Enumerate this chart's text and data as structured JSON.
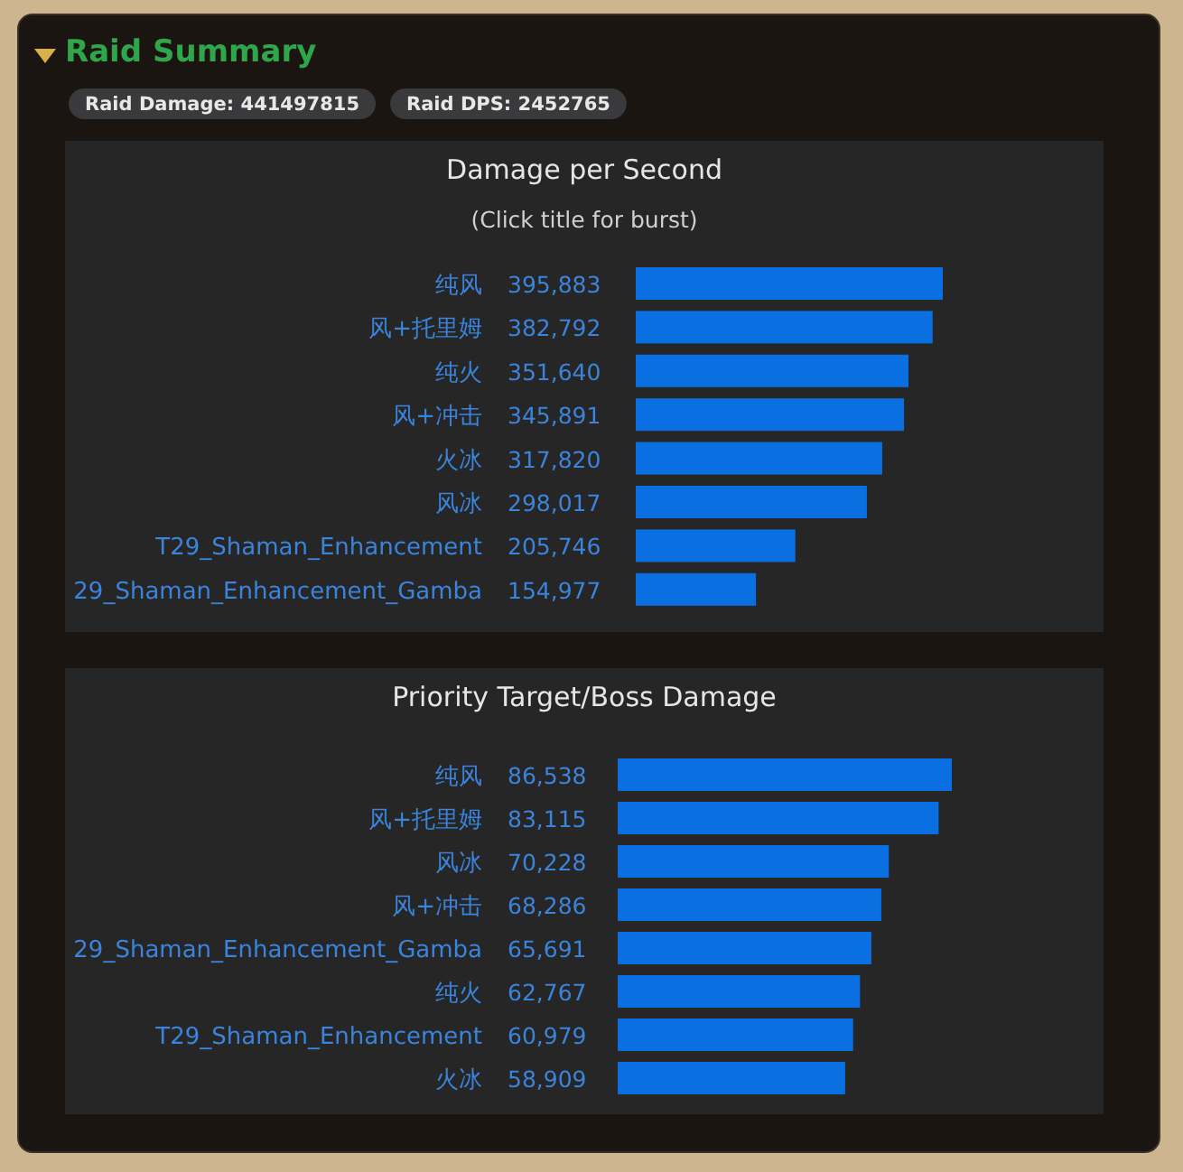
{
  "chart_data": [
    {
      "type": "other",
      "title": "Raid Summary",
      "annotations": [
        "Raid Damage: 441497815",
        "Raid DPS: 2452765"
      ]
    },
    {
      "type": "bar",
      "orientation": "horizontal",
      "title": "Damage per Second",
      "subtitle": "(Click title for burst)",
      "color": "#0a6fe0",
      "categories": [
        "纯风",
        "风+托里姆",
        "纯火",
        "风+冲击",
        "火冰",
        "风冰",
        "T29_Shaman_Enhancement",
        "29_Shaman_Enhancement_Gamba"
      ],
      "values": [
        395883,
        382792,
        351640,
        345891,
        317820,
        298017,
        205746,
        154977
      ],
      "value_labels": [
        "395,883",
        "382,792",
        "351,640",
        "345,891",
        "317,820",
        "298,017",
        "205,746",
        "154,977"
      ]
    },
    {
      "type": "bar",
      "orientation": "horizontal",
      "title": "Priority Target/Boss Damage",
      "color": "#0a6fe0",
      "categories": [
        "纯风",
        "风+托里姆",
        "风冰",
        "风+冲击",
        "29_Shaman_Enhancement_Gamba",
        "纯火",
        "T29_Shaman_Enhancement",
        "火冰"
      ],
      "values": [
        86538,
        83115,
        70228,
        68286,
        65691,
        62767,
        60979,
        58909
      ],
      "value_labels": [
        "86,538",
        "83,115",
        "70,228",
        "68,286",
        "65,691",
        "62,767",
        "60,979",
        "58,909"
      ]
    }
  ]
}
